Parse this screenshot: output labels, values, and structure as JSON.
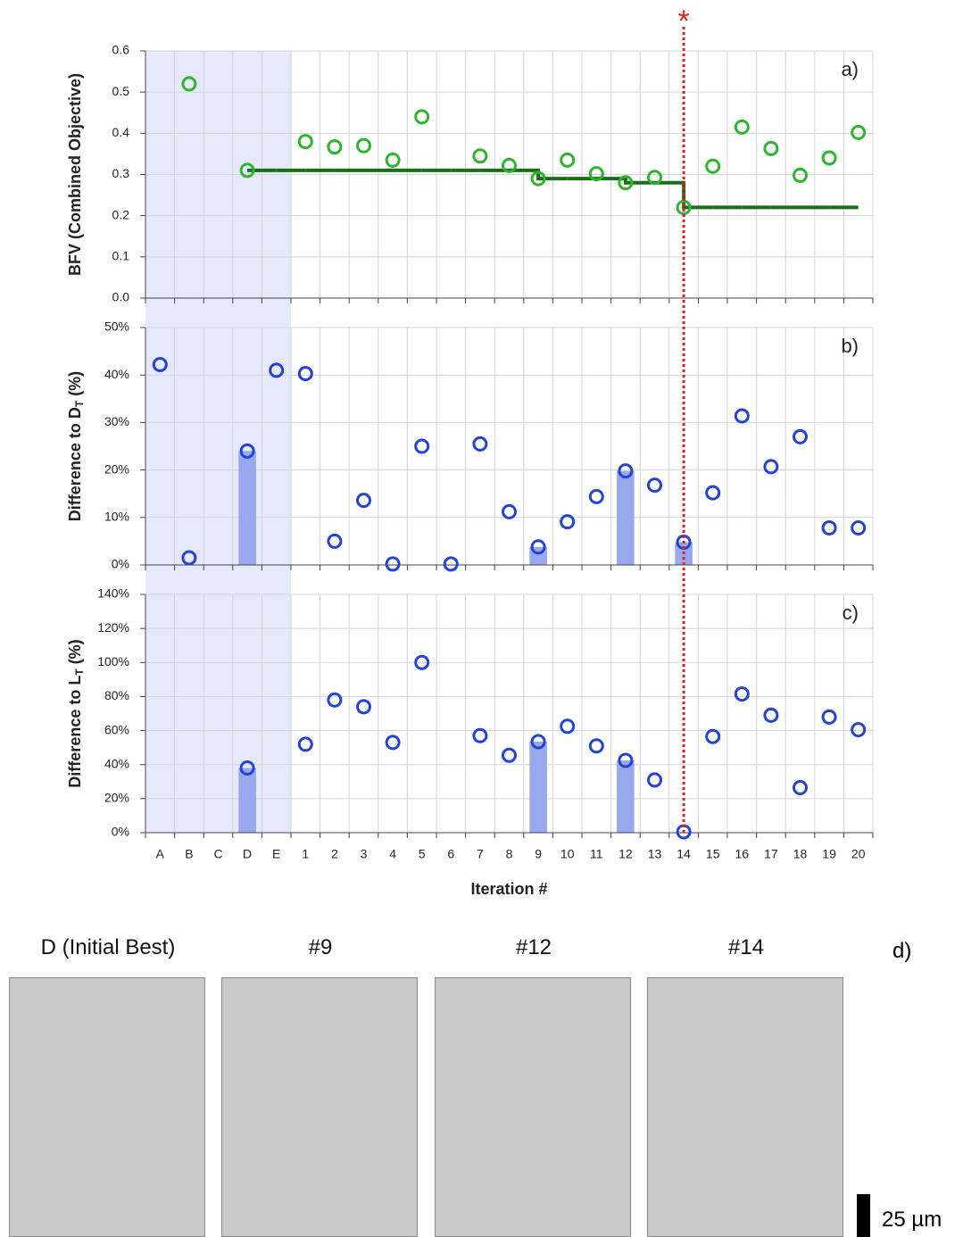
{
  "chart_data": [
    {
      "type": "combo",
      "panel_label": "a)",
      "ylabel": "BFV (Combined Objective)",
      "categories": [
        "A",
        "B",
        "C",
        "D",
        "E",
        "1",
        "2",
        "3",
        "4",
        "5",
        "6",
        "7",
        "8",
        "9",
        "10",
        "11",
        "12",
        "13",
        "14",
        "15",
        "16",
        "17",
        "18",
        "19",
        "20"
      ],
      "ylim": [
        0,
        0.6
      ],
      "yticks": [
        {
          "value": 0,
          "label": "0.0"
        },
        0.1,
        0.2,
        0.3,
        0.4,
        0.5,
        0.6
      ],
      "grid": true,
      "series": [
        {
          "type": "step",
          "color": "#1a6e1a",
          "values": [
            null,
            null,
            null,
            0.31,
            0.31,
            0.31,
            0.31,
            0.31,
            0.31,
            0.31,
            0.31,
            0.31,
            0.31,
            0.29,
            0.29,
            0.29,
            0.28,
            0.28,
            0.22,
            0.22,
            0.22,
            0.22,
            0.22,
            0.22,
            0.22
          ]
        },
        {
          "type": "scatter",
          "color": "#2db52d",
          "values": [
            null,
            0.52,
            null,
            0.31,
            null,
            0.38,
            0.367,
            0.37,
            0.335,
            0.44,
            null,
            0.345,
            0.322,
            0.29,
            0.335,
            0.302,
            0.28,
            0.293,
            0.22,
            0.32,
            0.415,
            0.363,
            0.298,
            0.34,
            0.402
          ]
        }
      ]
    },
    {
      "type": "combo",
      "panel_label": "b)",
      "ylabel": [
        "Difference to D",
        "T",
        " (%)"
      ],
      "categories": [
        "A",
        "B",
        "C",
        "D",
        "E",
        "1",
        "2",
        "3",
        "4",
        "5",
        "6",
        "7",
        "8",
        "9",
        "10",
        "11",
        "12",
        "13",
        "14",
        "15",
        "16",
        "17",
        "18",
        "19",
        "20"
      ],
      "ylim": [
        0,
        50
      ],
      "yticks": [
        {
          "value": 0,
          "label": "0%"
        },
        {
          "value": 10,
          "label": "10%"
        },
        {
          "value": 20,
          "label": "20%"
        },
        {
          "value": 30,
          "label": "30%"
        },
        {
          "value": 40,
          "label": "40%"
        },
        {
          "value": 50,
          "label": "50%"
        }
      ],
      "grid": true,
      "series": [
        {
          "type": "bar",
          "color": "#97a8ec",
          "values": [
            null,
            null,
            null,
            24,
            null,
            null,
            null,
            null,
            null,
            null,
            null,
            null,
            null,
            3.8,
            null,
            null,
            19.8,
            null,
            4.8,
            null,
            null,
            null,
            null,
            null,
            null
          ]
        },
        {
          "type": "scatter",
          "color": "#2343d6",
          "values": [
            42.2,
            1.5,
            null,
            24,
            41,
            40.3,
            5,
            13.6,
            0.2,
            25,
            0.2,
            25.5,
            11.2,
            3.8,
            9.1,
            14.4,
            19.8,
            16.8,
            4.8,
            15.2,
            31.4,
            20.7,
            27,
            7.8,
            7.8
          ]
        }
      ]
    },
    {
      "type": "combo",
      "panel_label": "c)",
      "ylabel": [
        "Difference to L",
        "T",
        " (%)"
      ],
      "xlabel": "Iteration #",
      "categories": [
        "A",
        "B",
        "C",
        "D",
        "E",
        "1",
        "2",
        "3",
        "4",
        "5",
        "6",
        "7",
        "8",
        "9",
        "10",
        "11",
        "12",
        "13",
        "14",
        "15",
        "16",
        "17",
        "18",
        "19",
        "20"
      ],
      "ylim": [
        0,
        140
      ],
      "yticks": [
        {
          "value": 0,
          "label": "0%"
        },
        {
          "value": 20,
          "label": "20%"
        },
        {
          "value": 40,
          "label": "40%"
        },
        {
          "value": 60,
          "label": "60%"
        },
        {
          "value": 80,
          "label": "80%"
        },
        {
          "value": 100,
          "label": "100%"
        },
        {
          "value": 120,
          "label": "120%"
        },
        {
          "value": 140,
          "label": "140%"
        }
      ],
      "grid": true,
      "series": [
        {
          "type": "bar",
          "color": "#97a8ec",
          "values": [
            null,
            null,
            null,
            38,
            null,
            null,
            null,
            null,
            null,
            null,
            null,
            null,
            null,
            53.5,
            null,
            null,
            42.5,
            null,
            null,
            null,
            null,
            null,
            null,
            null,
            null
          ]
        },
        {
          "type": "scatter",
          "color": "#2343d6",
          "values": [
            null,
            null,
            null,
            38,
            null,
            52,
            78,
            74,
            53,
            100,
            null,
            57,
            45.5,
            53.5,
            62.5,
            51,
            42.5,
            31,
            0.5,
            56.5,
            81.5,
            69,
            26.5,
            68,
            60.5
          ]
        }
      ]
    }
  ],
  "shade": {
    "from": "A",
    "to": "E",
    "color": "#e6e9fb"
  },
  "reference_line": {
    "category": "14",
    "label": "*",
    "color": "#e02020"
  },
  "image_panel": {
    "label": "d)",
    "captions": [
      "D (Initial Best)",
      "#9",
      "#12",
      "#14"
    ],
    "scale_bar": "25 µm"
  }
}
